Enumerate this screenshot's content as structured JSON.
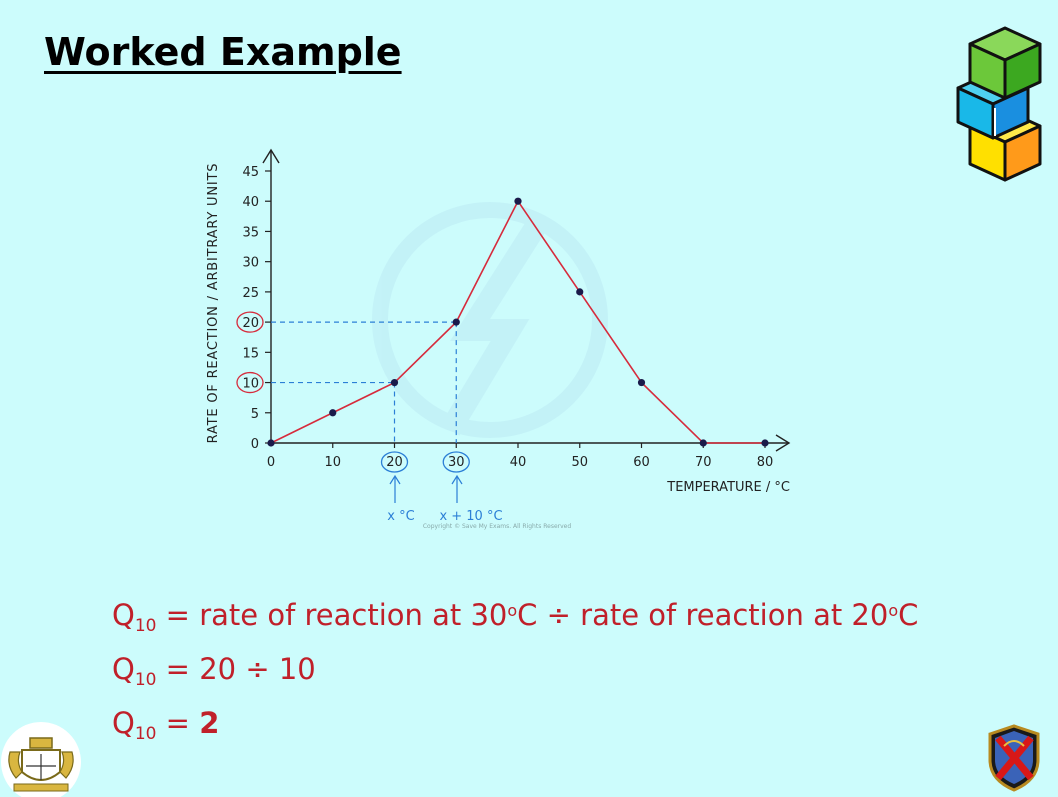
{
  "slide": {
    "title": "Worked Example"
  },
  "chart_data": {
    "type": "line",
    "x": [
      0,
      10,
      20,
      30,
      40,
      50,
      60,
      70,
      80
    ],
    "values": [
      0,
      5,
      10,
      20,
      40,
      25,
      10,
      0,
      0
    ],
    "xlabel": "TEMPERATURE / °C",
    "ylabel": "RATE OF REACTION / ARBITRARY UNITS",
    "xticks": [
      "0",
      "10",
      "20",
      "30",
      "40",
      "50",
      "60",
      "70",
      "80"
    ],
    "yticks": [
      "0",
      "5",
      "10",
      "15",
      "20",
      "25",
      "30",
      "35",
      "40",
      "45"
    ],
    "xlim": [
      0,
      80
    ],
    "ylim": [
      0,
      45
    ],
    "line_color": "#d62b3c",
    "marker_color": "#1a1a4a",
    "highlight_color": "#2b7fd6",
    "circled_x": [
      "20",
      "30"
    ],
    "circled_y": [
      "10",
      "20"
    ],
    "annotations": {
      "x_label": "x °C",
      "x_plus_label": "x + 10 °C"
    },
    "copyright": "Copyright © Save My Exams. All Rights Reserved"
  },
  "equations": {
    "q_symbol": "Q",
    "q_sub": "10",
    "line1_rest_a": " = rate of reaction at 30",
    "line1_deg": "o",
    "line1_rest_b": "C ÷ rate of reaction at 20",
    "line1_deg2": "o",
    "line1_rest_c": "C",
    "line2_rest": " = 20 ÷ 10",
    "line3_rest": " = ",
    "line3_answer": "2"
  },
  "colors": {
    "background": "#ccfcfc",
    "equation_text": "#c0202a"
  },
  "icons": [
    "cubes-logo-icon",
    "school-crest-icon",
    "shield-logo-icon"
  ]
}
